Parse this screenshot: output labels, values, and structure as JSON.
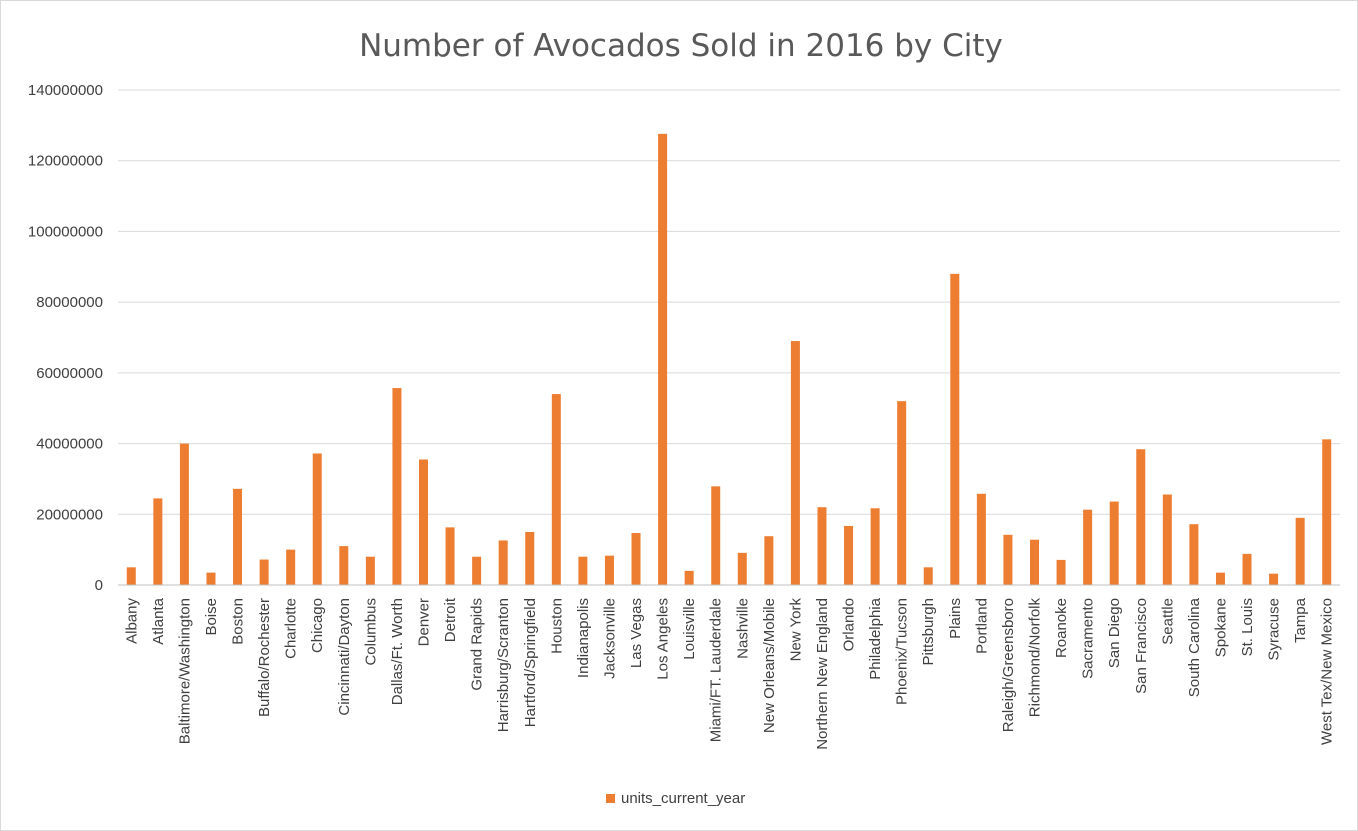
{
  "chart_data": {
    "type": "bar",
    "title": "Number of Avocados Sold in 2016 by City",
    "xlabel": "",
    "ylabel": "",
    "ylim": [
      0,
      140000000
    ],
    "yticks": [
      "0",
      "20000000",
      "40000000",
      "60000000",
      "80000000",
      "100000000",
      "120000000",
      "140000000"
    ],
    "grid": true,
    "legend_position": "bottom",
    "color": "#ED7D31",
    "categories": [
      "Albany",
      "Atlanta",
      "Baltimore/Washington",
      "Boise",
      "Boston",
      "Buffalo/Rochester",
      "Charlotte",
      "Chicago",
      "Cincinnati/Dayton",
      "Columbus",
      "Dallas/Ft. Worth",
      "Denver",
      "Detroit",
      "Grand Rapids",
      "Harrisburg/Scranton",
      "Hartford/Springfield",
      "Houston",
      "Indianapolis",
      "Jacksonville",
      "Las Vegas",
      "Los Angeles",
      "Louisville",
      "Miami/FT. Lauderdale",
      "Nashville",
      "New Orleans/Mobile",
      "New York",
      "Northern New England",
      "Orlando",
      "Philadelphia",
      "Phoenix/Tucson",
      "Pittsburgh",
      "Plains",
      "Portland",
      "Raleigh/Greensboro",
      "Richmond/Norfolk",
      "Roanoke",
      "Sacramento",
      "San Diego",
      "San Francisco",
      "Seattle",
      "South Carolina",
      "Spokane",
      "St. Louis",
      "Syracuse",
      "Tampa",
      "West Tex/New Mexico"
    ],
    "series": [
      {
        "name": "units_current_year",
        "values": [
          5000000,
          24500000,
          40000000,
          3500000,
          27200000,
          7200000,
          10000000,
          37200000,
          11000000,
          8000000,
          55700000,
          35500000,
          16300000,
          8000000,
          12600000,
          15000000,
          54000000,
          8000000,
          8300000,
          14700000,
          127600000,
          4000000,
          27900000,
          9100000,
          13800000,
          69000000,
          22000000,
          16700000,
          21700000,
          52000000,
          5000000,
          88000000,
          25800000,
          14200000,
          12800000,
          7100000,
          21300000,
          23600000,
          38400000,
          25600000,
          17200000,
          3500000,
          8800000,
          3200000,
          19000000,
          41200000
        ]
      }
    ]
  }
}
